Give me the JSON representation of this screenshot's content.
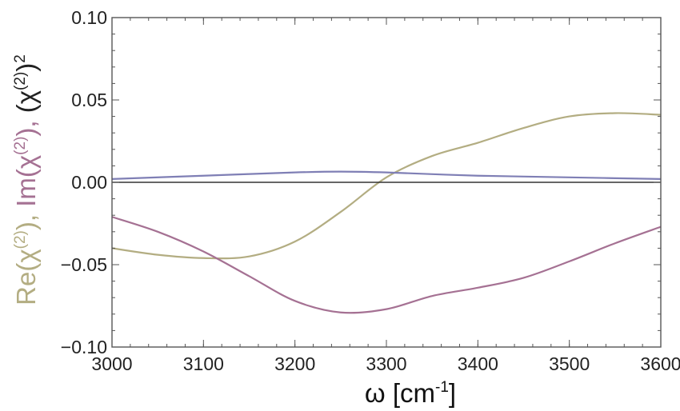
{
  "chart_data": {
    "type": "line",
    "xlabel_parts": {
      "main": "ω [cm",
      "sup": "-1",
      "tail": "]"
    },
    "ylabel_parts": [
      {
        "text": "Re(χ",
        "sup": "(2)",
        "tail": "), ",
        "color": "#b3ad82"
      },
      {
        "text": "Im(χ",
        "sup": "(2)",
        "tail": "), ",
        "color": "#a57193"
      },
      {
        "text": "(χ",
        "sup": "(2)",
        "tail": ")",
        "sup2": "2",
        "color": "#222222"
      }
    ],
    "xlim": [
      3000,
      3600
    ],
    "ylim": [
      -0.1,
      0.1
    ],
    "x_ticks": [
      3000,
      3100,
      3200,
      3300,
      3400,
      3500,
      3600
    ],
    "y_ticks": [
      {
        "value": -0.1,
        "label": "−0.10"
      },
      {
        "value": -0.05,
        "label": "−0.05"
      },
      {
        "value": 0.0,
        "label": "0.00"
      },
      {
        "value": 0.05,
        "label": "0.05"
      },
      {
        "value": 0.1,
        "label": "0.10"
      }
    ],
    "grid": false,
    "series": [
      {
        "color": "#b3ad82",
        "x": [
          3000,
          3050,
          3100,
          3150,
          3200,
          3250,
          3300,
          3350,
          3400,
          3450,
          3500,
          3550,
          3600
        ],
        "y": [
          -0.04,
          -0.044,
          -0.046,
          -0.045,
          -0.036,
          -0.018,
          0.003,
          0.016,
          0.024,
          0.033,
          0.04,
          0.042,
          0.041
        ]
      },
      {
        "color": "#a57193",
        "x": [
          3000,
          3050,
          3100,
          3150,
          3200,
          3250,
          3300,
          3350,
          3400,
          3450,
          3500,
          3550,
          3600
        ],
        "y": [
          -0.021,
          -0.03,
          -0.042,
          -0.057,
          -0.072,
          -0.079,
          -0.077,
          -0.069,
          -0.064,
          -0.058,
          -0.048,
          -0.037,
          -0.027
        ]
      },
      {
        "color": "#7f7fb5",
        "x": [
          3000,
          3100,
          3200,
          3250,
          3300,
          3400,
          3500,
          3600
        ],
        "y": [
          0.002,
          0.004,
          0.006,
          0.0065,
          0.006,
          0.004,
          0.003,
          0.002
        ]
      }
    ]
  }
}
